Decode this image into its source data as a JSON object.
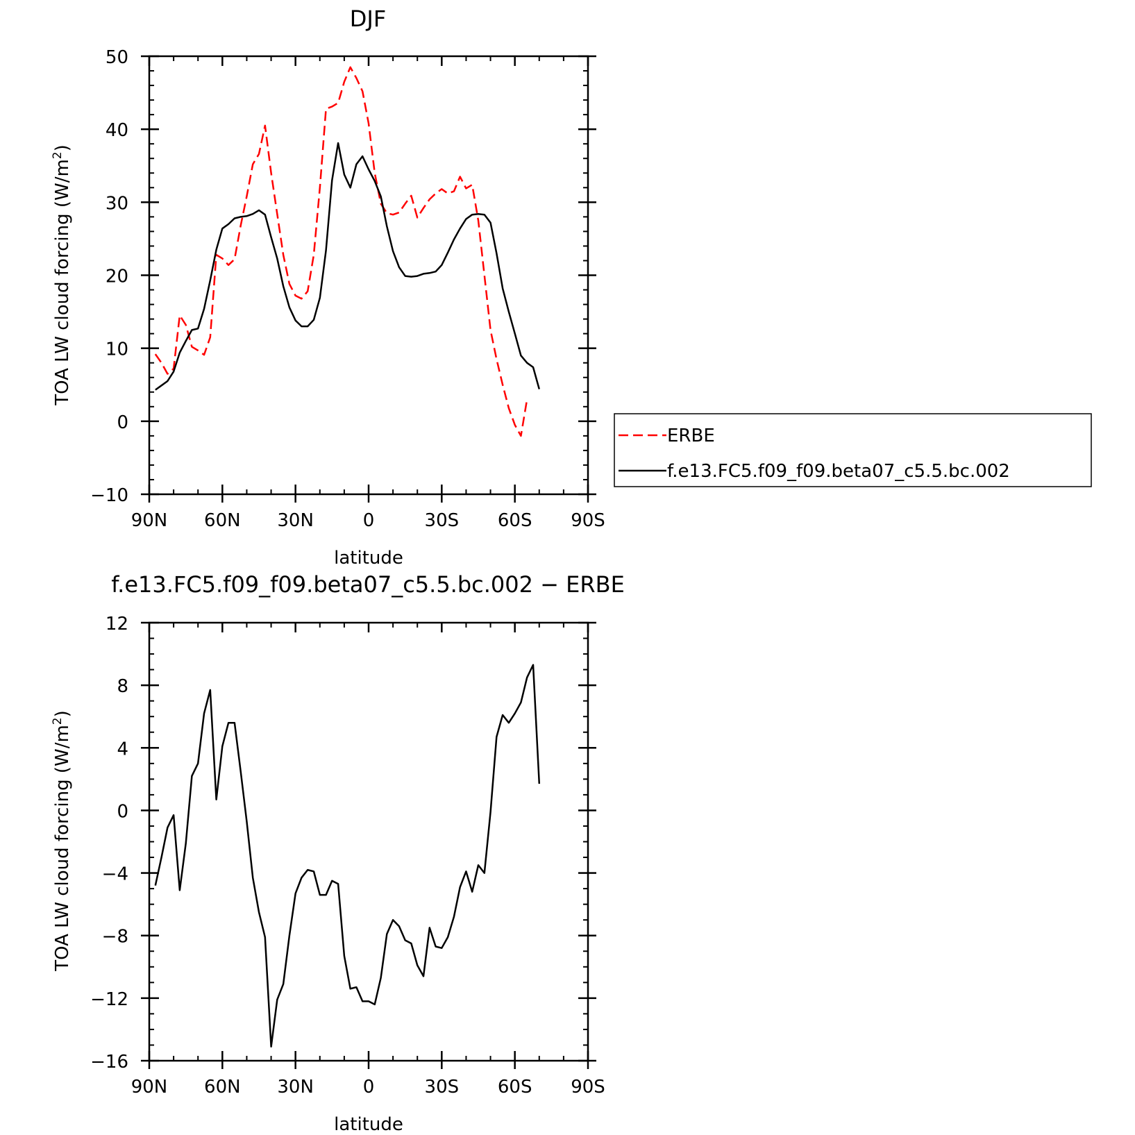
{
  "chart_data": [
    {
      "type": "line",
      "title": "DJF",
      "xlabel": "latitude",
      "ylabel": "TOA LW cloud forcing (W/m²)",
      "ylabel_prefix": "TOA LW cloud forcing (W/m",
      "ylabel_sup": "2",
      "ylabel_suffix": ")",
      "xlim": [
        -90,
        90
      ],
      "ylim": [
        -10,
        50
      ],
      "xticks": [
        {
          "value": -90,
          "label": "90N"
        },
        {
          "value": -60,
          "label": "60N"
        },
        {
          "value": -30,
          "label": "30N"
        },
        {
          "value": 0,
          "label": "0"
        },
        {
          "value": 30,
          "label": "30S"
        },
        {
          "value": 60,
          "label": "60S"
        },
        {
          "value": 90,
          "label": "90S"
        }
      ],
      "yticks": [
        {
          "value": 50,
          "label": "50"
        },
        {
          "value": 40,
          "label": "40"
        },
        {
          "value": 30,
          "label": "30"
        },
        {
          "value": 20,
          "label": "20"
        },
        {
          "value": 10,
          "label": "10"
        },
        {
          "value": 0,
          "label": "0"
        },
        {
          "value": -10,
          "label": "−10"
        }
      ],
      "legend": {
        "placement": "right"
      },
      "series": [
        {
          "name": "ERBE",
          "color": "#ff0000",
          "style": "dashed",
          "points": [
            [
              -87.5,
              9.2
            ],
            [
              -85,
              8.0
            ],
            [
              -82.5,
              6.5
            ],
            [
              -80,
              7.2
            ],
            [
              -77.5,
              14.5
            ],
            [
              -75,
              13.2
            ],
            [
              -72.5,
              10.2
            ],
            [
              -70,
              9.7
            ],
            [
              -67.5,
              9.1
            ],
            [
              -65,
              11.5
            ],
            [
              -62.5,
              22.8
            ],
            [
              -60,
              22.3
            ],
            [
              -57.5,
              21.4
            ],
            [
              -55,
              22.2
            ],
            [
              -52.5,
              26.8
            ],
            [
              -50,
              30.8
            ],
            [
              -47.5,
              35.2
            ],
            [
              -45,
              36.6
            ],
            [
              -42.5,
              40.5
            ],
            [
              -40,
              34.0
            ],
            [
              -37.5,
              28.4
            ],
            [
              -35,
              22.8
            ],
            [
              -32.5,
              18.8
            ],
            [
              -30,
              17.2
            ],
            [
              -27.5,
              16.8
            ],
            [
              -25,
              17.8
            ],
            [
              -22.5,
              22.8
            ],
            [
              -20,
              32.0
            ],
            [
              -17.5,
              42.8
            ],
            [
              -15,
              43.1
            ],
            [
              -12.5,
              43.6
            ],
            [
              -10,
              46.5
            ],
            [
              -7.5,
              48.5
            ],
            [
              -5,
              47.0
            ],
            [
              -2.5,
              45.2
            ],
            [
              0,
              40.8
            ],
            [
              2.5,
              34.0
            ],
            [
              5,
              29.8
            ],
            [
              7.5,
              28.5
            ],
            [
              10,
              28.3
            ],
            [
              12.5,
              28.6
            ],
            [
              15,
              29.8
            ],
            [
              17.5,
              30.9
            ],
            [
              20,
              27.9
            ],
            [
              22.5,
              29.2
            ],
            [
              25,
              30.4
            ],
            [
              27.5,
              31.2
            ],
            [
              30,
              31.8
            ],
            [
              32.5,
              31.2
            ],
            [
              35,
              31.5
            ],
            [
              37.5,
              33.5
            ],
            [
              40,
              31.9
            ],
            [
              42.5,
              32.4
            ],
            [
              45,
              27.5
            ],
            [
              47.5,
              20.0
            ],
            [
              50,
              12.5
            ],
            [
              52.5,
              8.5
            ],
            [
              55,
              5.0
            ],
            [
              57.5,
              1.8
            ],
            [
              60,
              -0.5
            ],
            [
              62.5,
              -2.0
            ],
            [
              65,
              3.0
            ]
          ]
        },
        {
          "name": "f.e13.FC5.f09_f09.beta07_c5.5.bc.002",
          "color": "#000000",
          "style": "solid",
          "points": [
            [
              -87.5,
              4.3
            ],
            [
              -85,
              4.9
            ],
            [
              -82.5,
              5.5
            ],
            [
              -80,
              6.8
            ],
            [
              -77.5,
              9.4
            ],
            [
              -75,
              11.0
            ],
            [
              -72.5,
              12.5
            ],
            [
              -70,
              12.7
            ],
            [
              -67.5,
              15.4
            ],
            [
              -65,
              19.3
            ],
            [
              -62.5,
              23.5
            ],
            [
              -60,
              26.4
            ],
            [
              -57.5,
              27.0
            ],
            [
              -55,
              27.8
            ],
            [
              -52.5,
              28.0
            ],
            [
              -50,
              28.1
            ],
            [
              -47.5,
              28.4
            ],
            [
              -45,
              28.9
            ],
            [
              -42.5,
              28.3
            ],
            [
              -40,
              25.2
            ],
            [
              -37.5,
              22.3
            ],
            [
              -35,
              18.5
            ],
            [
              -32.5,
              15.6
            ],
            [
              -30,
              13.8
            ],
            [
              -27.5,
              13.0
            ],
            [
              -25,
              13.0
            ],
            [
              -22.5,
              13.9
            ],
            [
              -20,
              16.9
            ],
            [
              -17.5,
              23.4
            ],
            [
              -15,
              33.0
            ],
            [
              -12.5,
              38.1
            ],
            [
              -10,
              33.8
            ],
            [
              -7.5,
              32.0
            ],
            [
              -5,
              35.2
            ],
            [
              -2.5,
              36.3
            ],
            [
              0,
              34.5
            ],
            [
              2.5,
              32.9
            ],
            [
              5,
              30.8
            ],
            [
              7.5,
              26.7
            ],
            [
              10,
              23.3
            ],
            [
              12.5,
              21.1
            ],
            [
              15,
              19.9
            ],
            [
              17.5,
              19.8
            ],
            [
              20,
              19.9
            ],
            [
              22.5,
              20.2
            ],
            [
              25,
              20.3
            ],
            [
              27.5,
              20.5
            ],
            [
              30,
              21.4
            ],
            [
              32.5,
              23.1
            ],
            [
              35,
              24.9
            ],
            [
              37.5,
              26.4
            ],
            [
              40,
              27.7
            ],
            [
              42.5,
              28.3
            ],
            [
              45,
              28.4
            ],
            [
              47.5,
              28.3
            ],
            [
              50,
              27.2
            ],
            [
              52.5,
              23.0
            ],
            [
              55,
              18.2
            ],
            [
              57.5,
              15.0
            ],
            [
              60,
              12.0
            ],
            [
              62.5,
              9.0
            ],
            [
              65,
              8.0
            ],
            [
              67.5,
              7.4
            ],
            [
              70,
              4.4
            ]
          ]
        }
      ]
    },
    {
      "type": "line",
      "title": "f.e13.FC5.f09_f09.beta07_c5.5.bc.002 − ERBE",
      "xlabel": "latitude",
      "ylabel": "TOA LW cloud forcing (W/m²)",
      "ylabel_prefix": "TOA LW cloud forcing (W/m",
      "ylabel_sup": "2",
      "ylabel_suffix": ")",
      "xlim": [
        -90,
        90
      ],
      "ylim": [
        -16,
        12
      ],
      "xticks": [
        {
          "value": -90,
          "label": "90N"
        },
        {
          "value": -60,
          "label": "60N"
        },
        {
          "value": -30,
          "label": "30N"
        },
        {
          "value": 0,
          "label": "0"
        },
        {
          "value": 30,
          "label": "30S"
        },
        {
          "value": 60,
          "label": "60S"
        },
        {
          "value": 90,
          "label": "90S"
        }
      ],
      "yticks": [
        {
          "value": 12,
          "label": "12"
        },
        {
          "value": 8,
          "label": "8"
        },
        {
          "value": 4,
          "label": "4"
        },
        {
          "value": 0,
          "label": "0"
        },
        {
          "value": -4,
          "label": "−4"
        },
        {
          "value": -8,
          "label": "−8"
        },
        {
          "value": -12,
          "label": "−12"
        },
        {
          "value": -16,
          "label": "−16"
        }
      ],
      "series": [
        {
          "color": "#000000",
          "style": "solid",
          "points": [
            [
              -87.5,
              -4.8
            ],
            [
              -85,
              -3.0
            ],
            [
              -82.5,
              -1.1
            ],
            [
              -80,
              -0.3
            ],
            [
              -77.5,
              -5.1
            ],
            [
              -75,
              -2.1
            ],
            [
              -72.5,
              2.2
            ],
            [
              -70,
              3.0
            ],
            [
              -67.5,
              6.2
            ],
            [
              -65,
              7.7
            ],
            [
              -62.5,
              0.7
            ],
            [
              -60,
              4.1
            ],
            [
              -57.5,
              5.6
            ],
            [
              -55,
              5.6
            ],
            [
              -52.5,
              2.5
            ],
            [
              -50,
              -0.7
            ],
            [
              -47.5,
              -4.3
            ],
            [
              -45,
              -6.5
            ],
            [
              -42.5,
              -8.1
            ],
            [
              -40,
              -15.1
            ],
            [
              -37.5,
              -12.1
            ],
            [
              -35,
              -11.1
            ],
            [
              -32.5,
              -8.0
            ],
            [
              -30,
              -5.3
            ],
            [
              -27.5,
              -4.3
            ],
            [
              -25,
              -3.8
            ],
            [
              -22.5,
              -3.9
            ],
            [
              -20,
              -5.4
            ],
            [
              -17.5,
              -5.4
            ],
            [
              -15,
              -4.5
            ],
            [
              -12.5,
              -4.7
            ],
            [
              -10,
              -9.3
            ],
            [
              -7.5,
              -11.4
            ],
            [
              -5,
              -11.3
            ],
            [
              -2.5,
              -12.2
            ],
            [
              0,
              -12.2
            ],
            [
              2.5,
              -12.4
            ],
            [
              5,
              -10.7
            ],
            [
              7.5,
              -7.9
            ],
            [
              10,
              -7.0
            ],
            [
              12.5,
              -7.4
            ],
            [
              15,
              -8.3
            ],
            [
              17.5,
              -8.5
            ],
            [
              20,
              -9.9
            ],
            [
              22.5,
              -10.6
            ],
            [
              25,
              -7.5
            ],
            [
              27.5,
              -8.7
            ],
            [
              30,
              -8.8
            ],
            [
              32.5,
              -8.1
            ],
            [
              35,
              -6.8
            ],
            [
              37.5,
              -4.9
            ],
            [
              40,
              -3.9
            ],
            [
              42.5,
              -5.2
            ],
            [
              45,
              -3.5
            ],
            [
              47.5,
              -4.0
            ],
            [
              50,
              -0.1
            ],
            [
              52.5,
              4.7
            ],
            [
              55,
              6.1
            ],
            [
              57.5,
              5.6
            ],
            [
              60,
              6.2
            ],
            [
              62.5,
              6.9
            ],
            [
              65,
              8.5
            ],
            [
              67.5,
              9.3
            ],
            [
              70,
              1.7
            ]
          ]
        }
      ]
    }
  ]
}
